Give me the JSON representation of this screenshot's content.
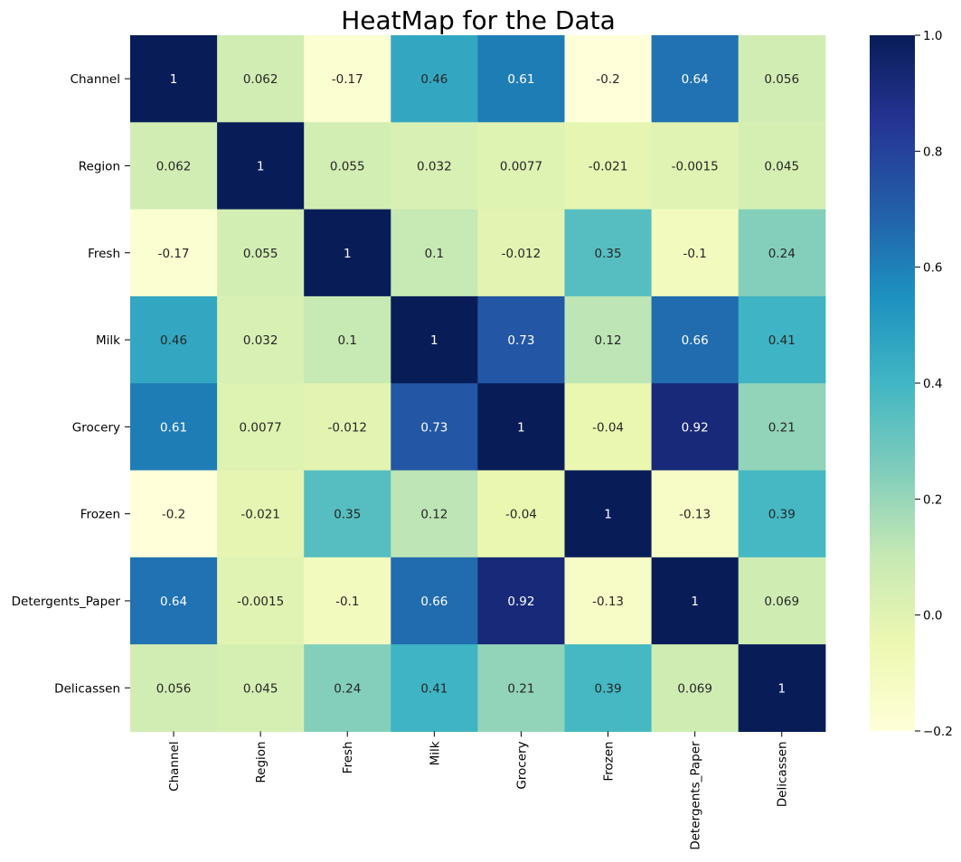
{
  "chart_data": {
    "type": "heatmap",
    "title": "HeatMap for the Data",
    "xlabel": "",
    "ylabel": "",
    "row_labels": [
      "Channel",
      "Region",
      "Fresh",
      "Milk",
      "Grocery",
      "Frozen",
      "Detergents_Paper",
      "Delicassen"
    ],
    "col_labels": [
      "Channel",
      "Region",
      "Fresh",
      "Milk",
      "Grocery",
      "Frozen",
      "Detergents_Paper",
      "Delicassen"
    ],
    "values": [
      [
        1,
        0.062,
        -0.17,
        0.46,
        0.61,
        -0.2,
        0.64,
        0.056
      ],
      [
        0.062,
        1,
        0.055,
        0.032,
        0.0077,
        -0.021,
        -0.0015,
        0.045
      ],
      [
        -0.17,
        0.055,
        1,
        0.1,
        -0.012,
        0.35,
        -0.1,
        0.24
      ],
      [
        0.46,
        0.032,
        0.1,
        1,
        0.73,
        0.12,
        0.66,
        0.41
      ],
      [
        0.61,
        0.0077,
        -0.012,
        0.73,
        1,
        -0.04,
        0.92,
        0.21
      ],
      [
        -0.2,
        -0.021,
        0.35,
        0.12,
        -0.04,
        1,
        -0.13,
        0.39
      ],
      [
        0.64,
        -0.0015,
        -0.1,
        0.66,
        0.92,
        -0.13,
        1,
        0.069
      ],
      [
        0.056,
        0.045,
        0.24,
        0.41,
        0.21,
        0.39,
        0.069,
        1
      ]
    ],
    "annotations": [
      [
        "1",
        "0.062",
        "-0.17",
        "0.46",
        "0.61",
        "-0.2",
        "0.64",
        "0.056"
      ],
      [
        "0.062",
        "1",
        "0.055",
        "0.032",
        "0.0077",
        "-0.021",
        "-0.0015",
        "0.045"
      ],
      [
        "-0.17",
        "0.055",
        "1",
        "0.1",
        "-0.012",
        "0.35",
        "-0.1",
        "0.24"
      ],
      [
        "0.46",
        "0.032",
        "0.1",
        "1",
        "0.73",
        "0.12",
        "0.66",
        "0.41"
      ],
      [
        "0.61",
        "0.0077",
        "-0.012",
        "0.73",
        "1",
        "-0.04",
        "0.92",
        "0.21"
      ],
      [
        "-0.2",
        "-0.021",
        "0.35",
        "0.12",
        "-0.04",
        "1",
        "-0.13",
        "0.39"
      ],
      [
        "0.64",
        "-0.0015",
        "-0.1",
        "0.66",
        "0.92",
        "-0.13",
        "1",
        "0.069"
      ],
      [
        "0.056",
        "0.045",
        "0.24",
        "0.41",
        "0.21",
        "0.39",
        "0.069",
        "1"
      ]
    ],
    "colormap": "YlGnBu",
    "colormap_stops": [
      "#ffffd9",
      "#edf8b1",
      "#c7e9b4",
      "#7fcdbb",
      "#41b6c4",
      "#1d91c0",
      "#225ea8",
      "#253494",
      "#081d58"
    ],
    "vmin": -0.2,
    "vmax": 1.0,
    "colorbar": {
      "ticks": [
        1.0,
        0.8,
        0.6,
        0.4,
        0.2,
        0.0,
        -0.2
      ],
      "tick_labels": [
        "1.0",
        "0.8",
        "0.6",
        "0.4",
        "0.2",
        "0.0",
        "−0.2"
      ]
    },
    "grid": false,
    "legend": "colorbar-right"
  }
}
